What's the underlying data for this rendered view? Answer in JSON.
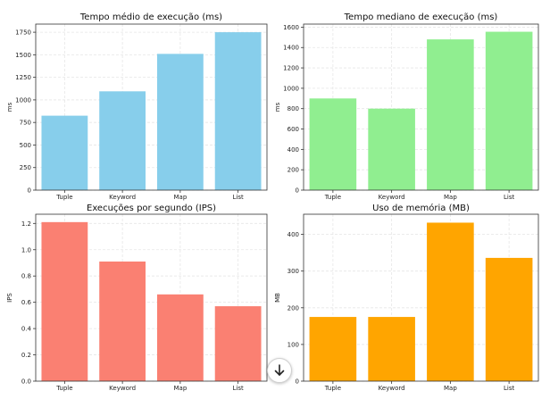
{
  "chart_data": [
    {
      "type": "bar",
      "title": "Tempo médio de execução (ms)",
      "ylabel": "ms",
      "xlabel": "",
      "categories": [
        "Tuple",
        "Keyword",
        "Map",
        "List"
      ],
      "values": [
        825,
        1095,
        1510,
        1750
      ],
      "ylim": [
        0,
        1840
      ],
      "yticks": [
        0,
        250,
        500,
        750,
        1000,
        1250,
        1500,
        1750
      ],
      "color": "#87CEEB",
      "grid": true
    },
    {
      "type": "bar",
      "title": "Tempo mediano de execução (ms)",
      "ylabel": "ms",
      "xlabel": "",
      "categories": [
        "Tuple",
        "Keyword",
        "Map",
        "List"
      ],
      "values": [
        900,
        800,
        1480,
        1555
      ],
      "ylim": [
        0,
        1630
      ],
      "yticks": [
        0,
        200,
        400,
        600,
        800,
        1000,
        1200,
        1400,
        1600
      ],
      "color": "#90EE90",
      "grid": true
    },
    {
      "type": "bar",
      "title": "Execuções por segundo (IPS)",
      "ylabel": "IPS",
      "xlabel": "",
      "categories": [
        "Tuple",
        "Keyword",
        "Map",
        "List"
      ],
      "values": [
        1.21,
        0.91,
        0.66,
        0.57
      ],
      "ylim": [
        0,
        1.27
      ],
      "yticks": [
        0.0,
        0.2,
        0.4,
        0.6,
        0.8,
        1.0,
        1.2
      ],
      "tick_decimals": 1,
      "color": "#FA8072",
      "grid": true
    },
    {
      "type": "bar",
      "title": "Uso de memória (MB)",
      "ylabel": "MB",
      "xlabel": "",
      "categories": [
        "Tuple",
        "Keyword",
        "Map",
        "List"
      ],
      "values": [
        175,
        175,
        432,
        336
      ],
      "ylim": [
        0,
        455
      ],
      "yticks": [
        0,
        100,
        200,
        300,
        400
      ],
      "color": "#FFA500",
      "grid": true
    }
  ],
  "scroll_button": {
    "icon": "arrow-down-icon"
  }
}
